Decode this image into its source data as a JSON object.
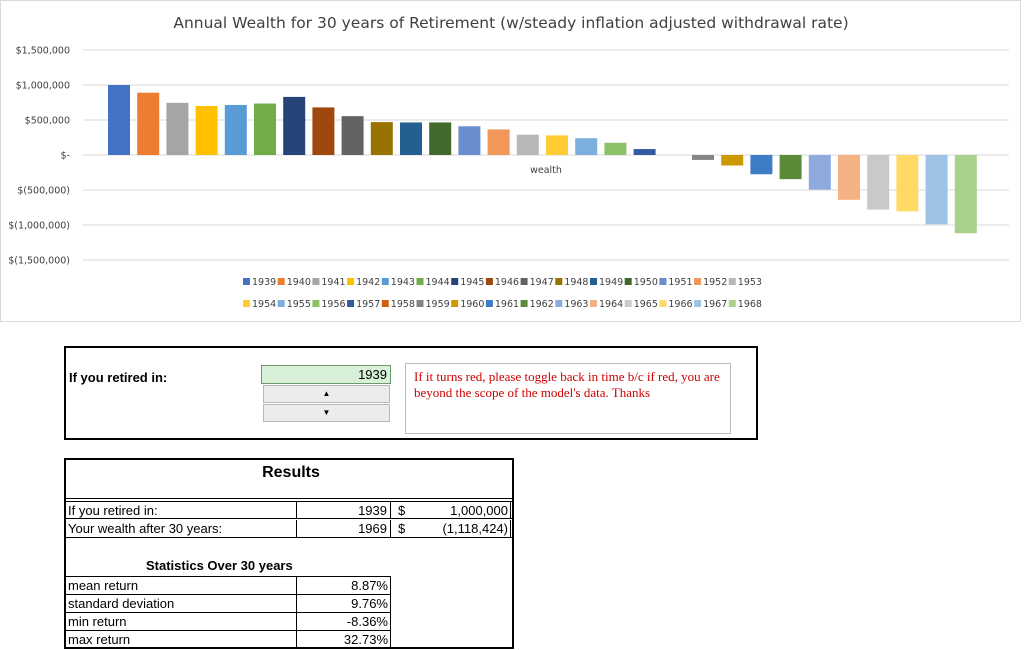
{
  "chart_data": {
    "type": "bar",
    "title": "Annual Wealth for 30 years of Retirement (w/steady inflation adjusted withdrawal rate)",
    "category_label": "wealth",
    "ylim": [
      -1500000,
      1500000
    ],
    "y_ticks": [
      {
        "value": 1500000,
        "label": "$1,500,000"
      },
      {
        "value": 1000000,
        "label": "$1,000,000"
      },
      {
        "value": 500000,
        "label": "$500,000"
      },
      {
        "value": 0,
        "label": "$-"
      },
      {
        "value": -500000,
        "label": "$(500,000)"
      },
      {
        "value": -1000000,
        "label": "$(1,000,000)"
      },
      {
        "value": -1500000,
        "label": "$(1,500,000)"
      }
    ],
    "grid": true,
    "legend_position": "bottom",
    "series": [
      {
        "name": "1939",
        "value": 1000000,
        "color": "#4472c4"
      },
      {
        "name": "1940",
        "value": 890000,
        "color": "#ed7d31"
      },
      {
        "name": "1941",
        "value": 745000,
        "color": "#a5a5a5"
      },
      {
        "name": "1942",
        "value": 700000,
        "color": "#ffc000"
      },
      {
        "name": "1943",
        "value": 715000,
        "color": "#5b9bd5"
      },
      {
        "name": "1944",
        "value": 735000,
        "color": "#70ad47"
      },
      {
        "name": "1945",
        "value": 830000,
        "color": "#264478"
      },
      {
        "name": "1946",
        "value": 680000,
        "color": "#9e480e"
      },
      {
        "name": "1947",
        "value": 555000,
        "color": "#636363"
      },
      {
        "name": "1948",
        "value": 470000,
        "color": "#997300"
      },
      {
        "name": "1949",
        "value": 465000,
        "color": "#255e91"
      },
      {
        "name": "1950",
        "value": 465000,
        "color": "#43682b"
      },
      {
        "name": "1951",
        "value": 410000,
        "color": "#698ed0"
      },
      {
        "name": "1952",
        "value": 365000,
        "color": "#f1975a"
      },
      {
        "name": "1953",
        "value": 290000,
        "color": "#b7b7b7"
      },
      {
        "name": "1954",
        "value": 280000,
        "color": "#ffcd33"
      },
      {
        "name": "1955",
        "value": 240000,
        "color": "#7cafdd"
      },
      {
        "name": "1956",
        "value": 175000,
        "color": "#8cc168"
      },
      {
        "name": "1957",
        "value": 85000,
        "color": "#335aa1"
      },
      {
        "name": "1958",
        "value": 0,
        "color": "#d26012"
      },
      {
        "name": "1959",
        "value": -70000,
        "color": "#848484"
      },
      {
        "name": "1960",
        "value": -150000,
        "color": "#cc9a00"
      },
      {
        "name": "1961",
        "value": -275000,
        "color": "#3c7dc4"
      },
      {
        "name": "1962",
        "value": -345000,
        "color": "#5a8b39"
      },
      {
        "name": "1963",
        "value": -495000,
        "color": "#8faadc"
      },
      {
        "name": "1964",
        "value": -640000,
        "color": "#f4b183"
      },
      {
        "name": "1965",
        "value": -780000,
        "color": "#c9c9c9"
      },
      {
        "name": "1966",
        "value": -805000,
        "color": "#ffd966"
      },
      {
        "name": "1967",
        "value": -990000,
        "color": "#9dc3e6"
      },
      {
        "name": "1968",
        "value": -1118424,
        "color": "#a9d18e"
      }
    ]
  },
  "input": {
    "label": "If you retired in:",
    "year": "1939",
    "up_symbol": "▲",
    "down_symbol": "▼",
    "note": "If it turns red, please toggle back in time b/c if red, you are beyond the scope of the model's data. Thanks"
  },
  "results": {
    "title": "Results",
    "rows": [
      {
        "label": "If you retired in:",
        "year": "1939",
        "currency": "$",
        "amount": "1,000,000"
      },
      {
        "label": "Your wealth after 30 years:",
        "year": "1969",
        "currency": "$",
        "amount": "(1,118,424)"
      }
    ],
    "stats_title": "Statistics Over 30 years",
    "stats": [
      {
        "label": "mean return",
        "value": "8.87%"
      },
      {
        "label": "standard deviation",
        "value": "9.76%"
      },
      {
        "label": "min return",
        "value": "-8.36%"
      },
      {
        "label": "max return",
        "value": "32.73%"
      }
    ]
  }
}
